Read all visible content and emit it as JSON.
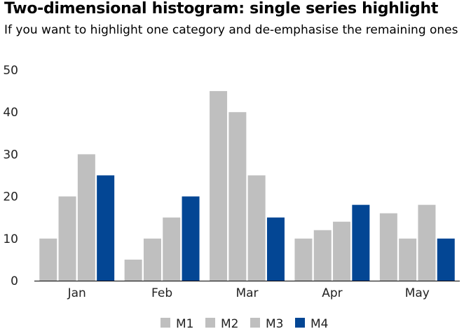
{
  "chart_data": {
    "type": "bar",
    "title": "Two-dimensional histogram: single series highlight",
    "subtitle": "If you want to highlight one category and de-emphasise the remaining ones",
    "categories": [
      "Jan",
      "Feb",
      "Mar",
      "Apr",
      "May"
    ],
    "series": [
      {
        "name": "M1",
        "color": "#bfbfbf",
        "values": [
          10,
          5,
          45,
          10,
          16
        ]
      },
      {
        "name": "M2",
        "color": "#bfbfbf",
        "values": [
          20,
          10,
          40,
          12,
          10
        ]
      },
      {
        "name": "M3",
        "color": "#bfbfbf",
        "values": [
          30,
          15,
          25,
          14,
          18
        ]
      },
      {
        "name": "M4",
        "color": "#034694",
        "values": [
          25,
          20,
          15,
          18,
          10
        ]
      }
    ],
    "ylim": [
      0,
      50
    ],
    "yticks": [
      0,
      10,
      20,
      30,
      40,
      50
    ],
    "grid": false,
    "legend_position": "bottom"
  }
}
